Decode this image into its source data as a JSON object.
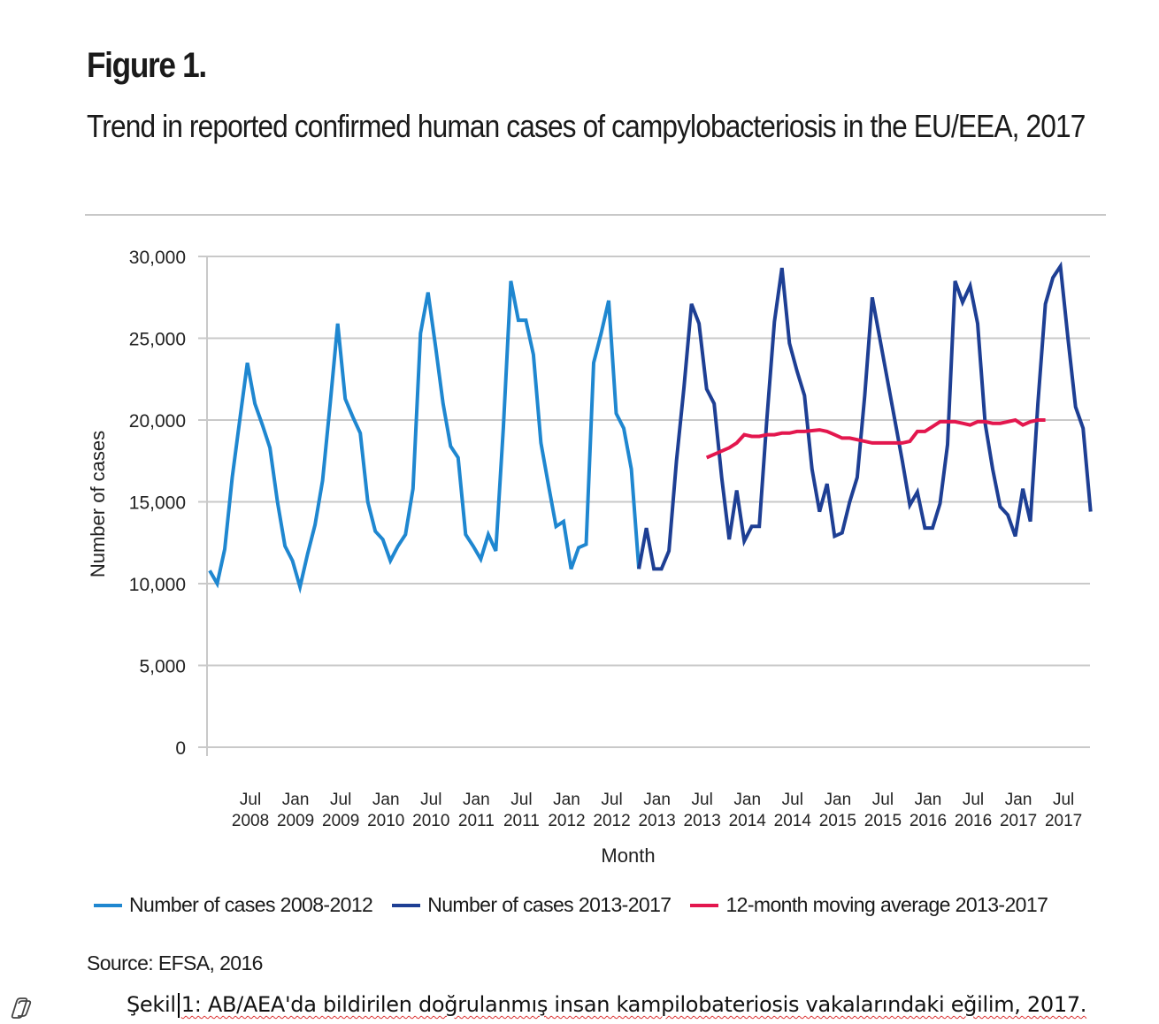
{
  "figure": {
    "label": "Figure 1.",
    "title": "Trend in reported confirmed human cases of campylobacteriosis in the EU/EEA, 2017",
    "source": "Source: EFSA, 2016"
  },
  "caption": {
    "prefix": "Şekil",
    "text": "1: AB/AEA'da bildirilen doğrulanmış insan kampilobateriosis vakalarındaki eğilim, 2017."
  },
  "icons": {
    "assistant": "copilot-icon"
  },
  "chart_data": {
    "type": "line",
    "title": "Trend in reported confirmed human cases of campylobacteriosis in the EU/EEA, 2017",
    "xlabel": "Month",
    "ylabel": "Number of cases",
    "ylim": [
      0,
      30000
    ],
    "yticks": [
      0,
      5000,
      10000,
      15000,
      20000,
      25000,
      30000
    ],
    "ytick_labels": [
      "0",
      "5,000",
      "10,000",
      "15,000",
      "20,000",
      "25,000",
      "30,000"
    ],
    "x_start": "Jan 2008",
    "x_end": "Dec 2017",
    "xtick_labels": [
      {
        "month": "Jul",
        "year": "2008",
        "index": 6
      },
      {
        "month": "Jan",
        "year": "2009",
        "index": 12
      },
      {
        "month": "Jul",
        "year": "2009",
        "index": 18
      },
      {
        "month": "Jan",
        "year": "2010",
        "index": 24
      },
      {
        "month": "Jul",
        "year": "2010",
        "index": 30
      },
      {
        "month": "Jan",
        "year": "2011",
        "index": 36
      },
      {
        "month": "Jul",
        "year": "2011",
        "index": 42
      },
      {
        "month": "Jan",
        "year": "2012",
        "index": 48
      },
      {
        "month": "Jul",
        "year": "2012",
        "index": 54
      },
      {
        "month": "Jan",
        "year": "2013",
        "index": 60
      },
      {
        "month": "Jul",
        "year": "2013",
        "index": 66
      },
      {
        "month": "Jan",
        "year": "2014",
        "index": 72
      },
      {
        "month": "Jul",
        "year": "2014",
        "index": 78
      },
      {
        "month": "Jan",
        "year": "2015",
        "index": 84
      },
      {
        "month": "Jul",
        "year": "2015",
        "index": 90
      },
      {
        "month": "Jan",
        "year": "2016",
        "index": 96
      },
      {
        "month": "Jul",
        "year": "2016",
        "index": 102
      },
      {
        "month": "Jan",
        "year": "2017",
        "index": 108
      },
      {
        "month": "Jul",
        "year": "2017",
        "index": 114
      }
    ],
    "grid": true,
    "legend_position": "bottom",
    "series": [
      {
        "name": "Number of cases 2008-2012",
        "color": "#1f87d0",
        "start_index": 0,
        "values": [
          10800,
          10000,
          12100,
          16500,
          20000,
          23500,
          21000,
          19700,
          18300,
          15000,
          12300,
          11400,
          9800,
          11800,
          13600,
          16300,
          21000,
          25900,
          21300,
          20200,
          19200,
          15000,
          13200,
          12700,
          11400,
          12300,
          13000,
          15800,
          25300,
          27800,
          24500,
          21000,
          18400,
          17700,
          13000,
          12300,
          11500,
          13000,
          12000,
          19500,
          28500,
          26100,
          26100,
          24000,
          18600,
          16000,
          13500,
          13800,
          10900,
          12200,
          12400,
          23500,
          25300,
          27300,
          20400,
          19500,
          17000,
          10900
        ]
      },
      {
        "name": "Number of cases 2013-2017",
        "color": "#1e3f94",
        "start_index": 57,
        "values": [
          10900,
          13400,
          10900,
          10900,
          12000,
          17500,
          22000,
          27100,
          25900,
          21900,
          21000,
          16500,
          12700,
          15700,
          12600,
          13500,
          13500,
          20000,
          26000,
          29300,
          24700,
          23000,
          21500,
          17000,
          14400,
          16100,
          12900,
          13100,
          15000,
          16500,
          21500,
          27500,
          25000,
          22500,
          20000,
          17500,
          14800,
          15600,
          13400,
          13400,
          14900,
          18500,
          28500,
          27200,
          28200,
          25900,
          19800,
          17000,
          14700,
          14200,
          12900,
          15800,
          13800,
          21000,
          27100,
          28700,
          29400,
          25000,
          20800,
          19500,
          14400
        ]
      },
      {
        "name": "12-month moving average 2013-2017",
        "color": "#e3174e",
        "start_index": 66,
        "values": [
          17700,
          17900,
          18100,
          18300,
          18600,
          19100,
          19000,
          19000,
          19100,
          19100,
          19200,
          19200,
          19300,
          19300,
          19350,
          19400,
          19300,
          19100,
          18900,
          18900,
          18800,
          18700,
          18600,
          18600,
          18600,
          18600,
          18600,
          18700,
          19300,
          19300,
          19600,
          19900,
          19900,
          19900,
          19800,
          19700,
          19900,
          19900,
          19800,
          19800,
          19900,
          20000,
          19700,
          19900,
          20000,
          20000
        ]
      }
    ]
  }
}
